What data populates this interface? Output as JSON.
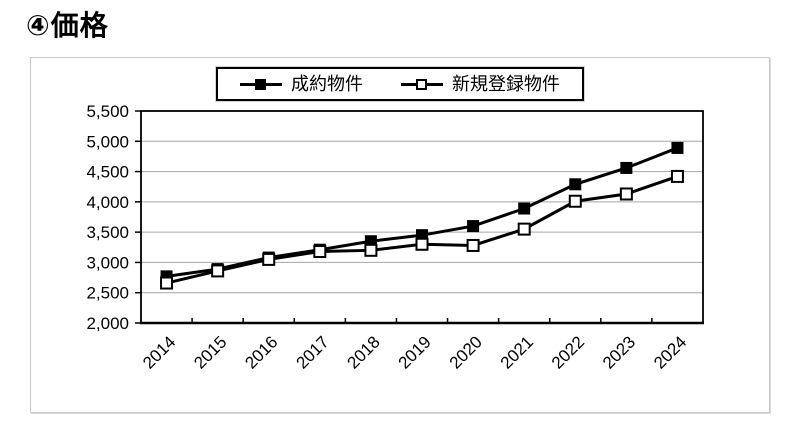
{
  "page": {
    "title": "④価格"
  },
  "legend": {
    "items": [
      {
        "label": "成約物件",
        "marker": "filled-square"
      },
      {
        "label": "新規登録物件",
        "marker": "open-square"
      }
    ]
  },
  "chart_data": {
    "type": "line",
    "title": "④価格",
    "categories": [
      "2014",
      "2015",
      "2016",
      "2017",
      "2018",
      "2019",
      "2020",
      "2021",
      "2022",
      "2023",
      "2024"
    ],
    "series": [
      {
        "name": "成約物件",
        "marker": "filled-square",
        "values": [
          2770,
          2890,
          3080,
          3210,
          3350,
          3450,
          3600,
          3890,
          4290,
          4560,
          4890
        ]
      },
      {
        "name": "新規登録物件",
        "marker": "open-square",
        "values": [
          2660,
          2860,
          3050,
          3180,
          3200,
          3300,
          3280,
          3550,
          4010,
          4130,
          4420
        ]
      }
    ],
    "ylim": [
      2000,
      5500
    ],
    "ytick_interval": 500,
    "ytick_labels": [
      "2,000",
      "2,500",
      "3,000",
      "3,500",
      "4,000",
      "4,500",
      "5,000",
      "5,500"
    ],
    "xlabel": "",
    "ylabel": "",
    "grid": true,
    "legend_position": "top-center",
    "colors": {
      "line": "#000000",
      "marker_fill_series1": "#000000",
      "marker_fill_series2": "#ffffff",
      "gridline": "#a6a6a6",
      "axis": "#000000",
      "chart_border": "#c9c9c9"
    }
  }
}
